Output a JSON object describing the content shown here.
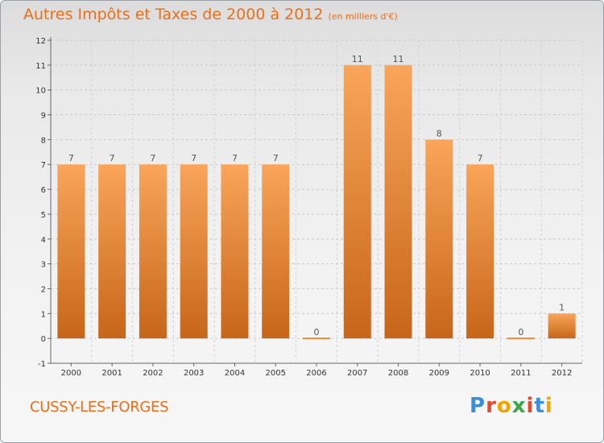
{
  "title": "Autres Impôts et Taxes de 2000 à 2012",
  "subtitle": "(en milliers d'€)",
  "city": "CUSSY-LES-FORGES",
  "logo": {
    "text": "Proxiti",
    "colors": [
      "#3a8fd6",
      "#e8462e",
      "#f0a500",
      "#3aa64a",
      "#e8462e",
      "#3a8fd6",
      "#f0a500"
    ]
  },
  "colors": {
    "accent": "#ea6f18",
    "bar_light": "#f9a55a",
    "bar_dark": "#c7661a"
  },
  "chart_data": {
    "type": "bar",
    "title": "Autres Impôts et Taxes de 2000 à 2012",
    "subtitle": "(en milliers d'€)",
    "categories": [
      "2000",
      "2001",
      "2002",
      "2003",
      "2004",
      "2005",
      "2006",
      "2007",
      "2008",
      "2009",
      "2010",
      "2011",
      "2012"
    ],
    "values": [
      7,
      7,
      7,
      7,
      7,
      7,
      0,
      11,
      11,
      8,
      7,
      0,
      1
    ],
    "ylim": [
      -1,
      12
    ],
    "yticks": [
      -1,
      0,
      1,
      2,
      3,
      4,
      5,
      6,
      7,
      8,
      9,
      10,
      11,
      12
    ],
    "grid": true
  }
}
